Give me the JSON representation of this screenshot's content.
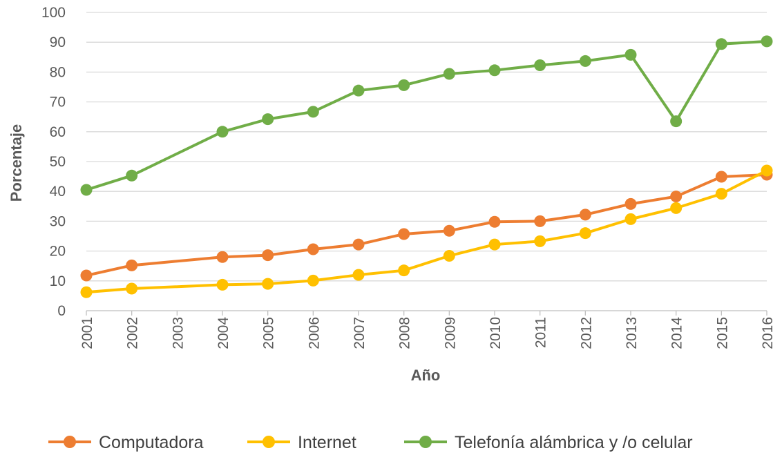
{
  "chart_data": {
    "type": "line",
    "title": "",
    "xlabel": "Año",
    "ylabel": "Porcentaje",
    "ylim": [
      0,
      100
    ],
    "yticks": [
      "0",
      "10",
      "20",
      "30",
      "40",
      "50",
      "60",
      "70",
      "80",
      "90",
      "100"
    ],
    "categories": [
      "2001",
      "2002",
      "2003",
      "2004",
      "2005",
      "2006",
      "2007",
      "2008",
      "2009",
      "2010",
      "2011",
      "2012",
      "2013",
      "2014",
      "2015",
      "2016"
    ],
    "grid": true,
    "legend_position": "bottom",
    "series": [
      {
        "name": "Computadora",
        "color": "#ED7D31",
        "values": [
          11.8,
          15.2,
          null,
          18.0,
          18.6,
          20.6,
          22.2,
          25.7,
          26.8,
          29.8,
          30.0,
          32.2,
          35.8,
          38.3,
          44.9,
          45.6
        ]
      },
      {
        "name": "Internet",
        "color": "#FFC000",
        "values": [
          6.2,
          7.4,
          null,
          8.7,
          9.0,
          10.1,
          12.0,
          13.5,
          18.4,
          22.2,
          23.3,
          26.0,
          30.7,
          34.4,
          39.2,
          47.0
        ]
      },
      {
        "name": "Telefonía alámbrica y /o celular",
        "color": "#70AD47",
        "values": [
          40.5,
          45.3,
          null,
          60.0,
          64.2,
          66.7,
          73.8,
          75.6,
          79.4,
          80.6,
          82.3,
          83.7,
          85.8,
          63.5,
          89.4,
          90.3
        ]
      }
    ]
  }
}
